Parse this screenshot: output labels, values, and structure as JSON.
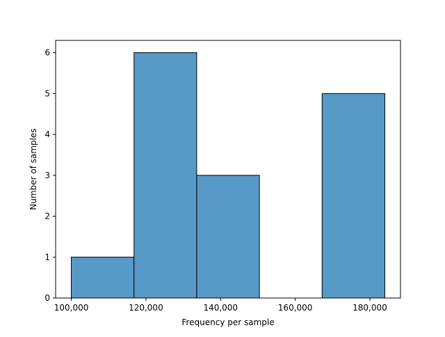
{
  "chart_data": {
    "type": "bar",
    "title": "",
    "xlabel": "Frequency per sample",
    "ylabel": "Number of samples",
    "bins": [
      {
        "x0": 100000,
        "x1": 116800,
        "count": 1
      },
      {
        "x0": 116800,
        "x1": 133600,
        "count": 6
      },
      {
        "x0": 133600,
        "x1": 150400,
        "count": 3
      },
      {
        "x0": 150400,
        "x1": 167200,
        "count": 0
      },
      {
        "x0": 167200,
        "x1": 184000,
        "count": 5
      }
    ],
    "xlim": [
      95800,
      188200
    ],
    "ylim": [
      0,
      6.3
    ],
    "xticks": [
      {
        "value": 100000,
        "label": "100,000"
      },
      {
        "value": 120000,
        "label": "120,000"
      },
      {
        "value": 140000,
        "label": "140,000"
      },
      {
        "value": 160000,
        "label": "160,000"
      },
      {
        "value": 180000,
        "label": "180,000"
      }
    ],
    "yticks": [
      {
        "value": 0,
        "label": "0"
      },
      {
        "value": 1,
        "label": "1"
      },
      {
        "value": 2,
        "label": "2"
      },
      {
        "value": 3,
        "label": "3"
      },
      {
        "value": 4,
        "label": "4"
      },
      {
        "value": 5,
        "label": "5"
      },
      {
        "value": 6,
        "label": "6"
      }
    ],
    "grid": false,
    "colors": {
      "bar_fill": "#5799c7",
      "bar_edge": "#000000",
      "axes": "#000000"
    }
  }
}
